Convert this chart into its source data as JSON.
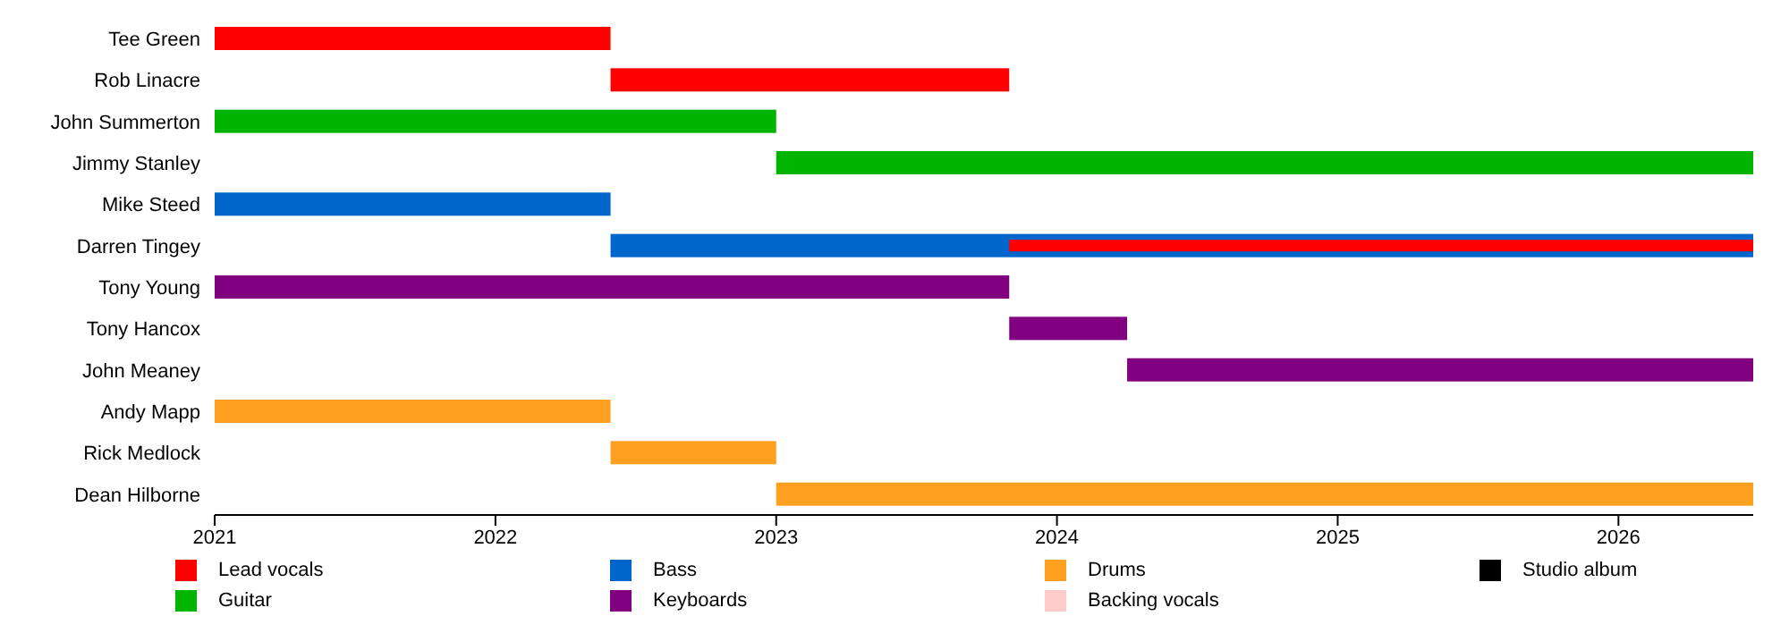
{
  "chart_data": {
    "type": "bar",
    "orientation": "horizontal",
    "categories": [
      "Tee Green",
      "Rob Linacre",
      "John Summerton",
      "Jimmy Stanley",
      "Mike Steed",
      "Darren Tingey",
      "Tony Young",
      "Tony Hancox",
      "John Meaney",
      "Andy Mapp",
      "Rick Medlock",
      "Dean Hilborne"
    ],
    "series": [
      {
        "name": "Lead vocals",
        "color": "#ff0000",
        "base": [
          2021,
          2022.41,
          null,
          null,
          null,
          2023.83,
          null,
          null,
          null,
          null,
          null,
          null
        ],
        "values": [
          1.41,
          1.42,
          null,
          null,
          null,
          2.65,
          null,
          null,
          null,
          null,
          null,
          null
        ]
      },
      {
        "name": "Guitar",
        "color": "#00b400",
        "base": [
          null,
          null,
          2021,
          2023,
          null,
          null,
          null,
          null,
          null,
          null,
          null,
          null
        ],
        "values": [
          null,
          null,
          2,
          3.48,
          null,
          null,
          null,
          null,
          null,
          null,
          null,
          null
        ]
      },
      {
        "name": "Bass",
        "color": "#0066cc",
        "base": [
          null,
          null,
          null,
          null,
          2021,
          2022.41,
          null,
          null,
          null,
          null,
          null,
          null
        ],
        "values": [
          null,
          null,
          null,
          null,
          1.41,
          4.07,
          null,
          null,
          null,
          null,
          null,
          null
        ]
      },
      {
        "name": "Keyboards",
        "color": "#800080",
        "base": [
          null,
          null,
          null,
          null,
          null,
          null,
          2021,
          2023.83,
          2024.25,
          null,
          null,
          null
        ],
        "values": [
          null,
          null,
          null,
          null,
          null,
          null,
          2.83,
          0.42,
          2.23,
          null,
          null,
          null
        ]
      },
      {
        "name": "Drums",
        "color": "#ffa020",
        "base": [
          null,
          null,
          null,
          null,
          null,
          null,
          null,
          null,
          null,
          2021,
          2022.41,
          2023
        ],
        "values": [
          null,
          null,
          null,
          null,
          null,
          null,
          null,
          null,
          null,
          1.41,
          0.59,
          3.48
        ]
      },
      {
        "name": "Backing vocals",
        "color": "#ffcccc",
        "base": [
          null,
          null,
          null,
          null,
          null,
          null,
          null,
          null,
          null,
          null,
          null,
          null
        ],
        "values": [
          null,
          null,
          null,
          null,
          null,
          null,
          null,
          null,
          null,
          null,
          null,
          null
        ]
      },
      {
        "name": "Studio album",
        "color": "#000000",
        "base": [
          null,
          null,
          null,
          null,
          null,
          null,
          null,
          null,
          null,
          null,
          null,
          null
        ],
        "values": [
          null,
          null,
          null,
          null,
          null,
          null,
          null,
          null,
          null,
          null,
          null,
          null
        ]
      }
    ],
    "xlim": [
      2021,
      2026.48
    ],
    "xticks": [
      2021,
      2022,
      2023,
      2024,
      2025,
      2026
    ],
    "legend": "bottom",
    "grid": false
  }
}
